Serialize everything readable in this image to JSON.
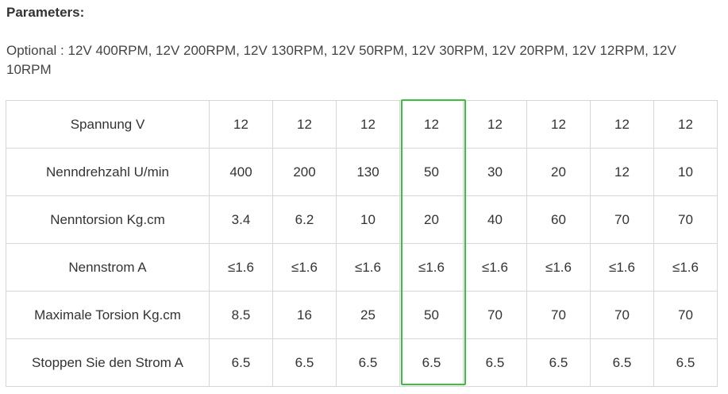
{
  "heading": "Parameters:",
  "optional_text": "Optional : 12V 400RPM, 12V 200RPM, 12V 130RPM, 12V 50RPM, 12V 30RPM, 12V 20RPM, 12V 12RPM, 12V 10RPM",
  "highlight_color": "#3dbf3d",
  "table": {
    "rows": [
      {
        "label": "Spannung V",
        "values": [
          "12",
          "12",
          "12",
          "12",
          "12",
          "12",
          "12",
          "12"
        ]
      },
      {
        "label": "Nenndrehzahl U/min",
        "values": [
          "400",
          "200",
          "130",
          "50",
          "30",
          "20",
          "12",
          "10"
        ]
      },
      {
        "label": "Nenntorsion Kg.cm",
        "values": [
          "3.4",
          "6.2",
          "10",
          "20",
          "40",
          "60",
          "70",
          "70"
        ]
      },
      {
        "label": "Nennstrom A",
        "values": [
          "≤1.6",
          "≤1.6",
          "≤1.6",
          "≤1.6",
          "≤1.6",
          "≤1.6",
          "≤1.6",
          "≤1.6"
        ]
      },
      {
        "label": "Maximale Torsion Kg.cm",
        "values": [
          "8.5",
          "16",
          "25",
          "50",
          "70",
          "70",
          "70",
          "70"
        ]
      },
      {
        "label": "Stoppen Sie den Strom A",
        "values": [
          "6.5",
          "6.5",
          "6.5",
          "6.5",
          "6.5",
          "6.5",
          "6.5",
          "6.5"
        ]
      }
    ]
  }
}
